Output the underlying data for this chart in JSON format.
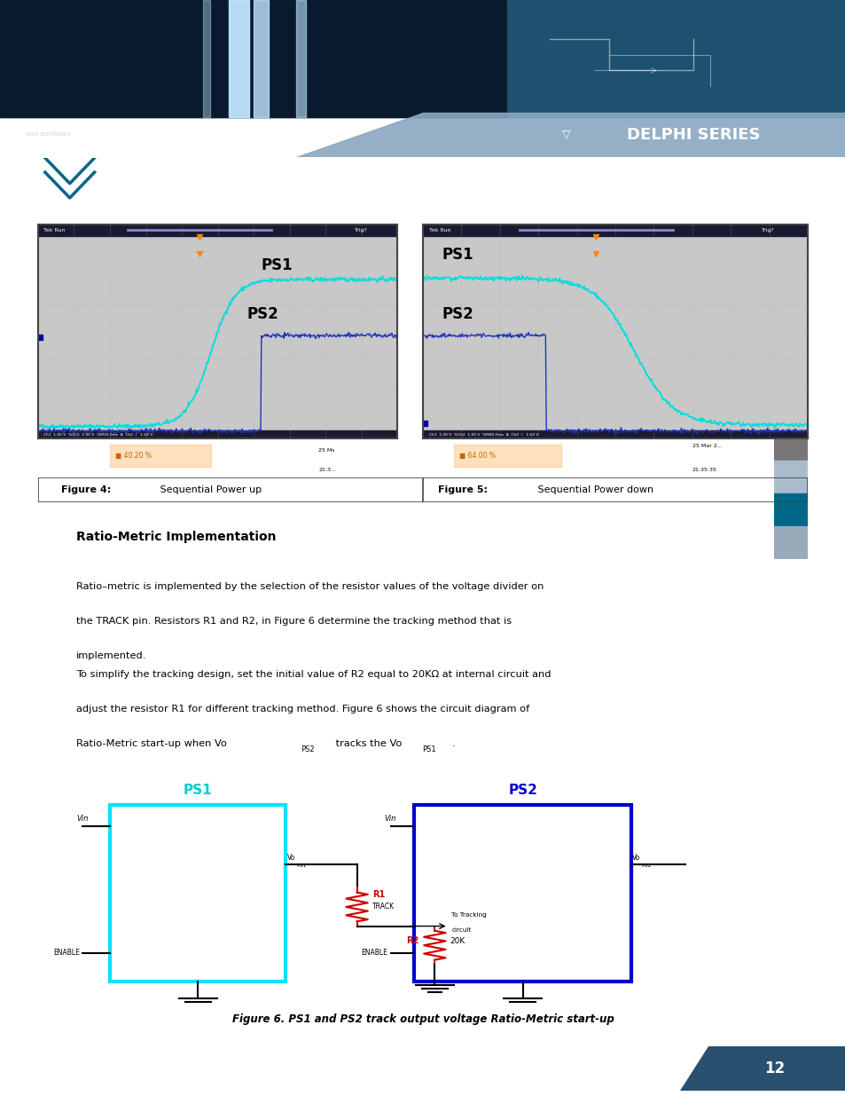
{
  "page_bg": "#ffffff",
  "delphi_text": "DELPHI SERIES",
  "title_section": "Ratio-Metric Implementation",
  "body_text_1a": "Ratio–metric is implemented by the selection of the resistor values of the voltage divider on",
  "body_text_1b": "the TRACK pin. Resistors R1 and R2, in Figure 6 determine the tracking method that is",
  "body_text_1c": "implemented.",
  "body_text_2a": "To simplify the tracking design, set the initial value of R2 equal to 20KΩ at internal circuit and",
  "body_text_2b": "adjust the resistor R1 for different tracking method. Figure 6 shows the circuit diagram of",
  "body_text_2c": "Ratio-Metric start-up when Vo",
  "body_text_2d": "PS2",
  "body_text_2e": " tracks the Vo",
  "body_text_2f": "PS1",
  "body_text_2g": ".",
  "fig4_caption_bold": "Figure 4:",
  "fig4_caption_rest": " Sequential Power up",
  "fig5_caption_bold": "Figure 5:",
  "fig5_caption_rest": " Sequential Power down",
  "fig6_caption": "Figure 6. PS1 and PS2 track output voltage Ratio-Metric start-up",
  "ps1_color": "#00e5ff",
  "ps2_color": "#0000cc",
  "ps1_label_color": "#00cccc",
  "ps2_label_color": "#0000cc",
  "r1_color": "#cc0000",
  "r2_color": "#cc0000",
  "page_num": "12",
  "scope_bg": "#c8c8c8",
  "scope_ps1_color": "#00dddd",
  "scope_ps2_color": "#2233bb",
  "orange_color": "#ff8800",
  "header_dark": "#0d1f35",
  "header_mid": "#1a3a5c",
  "header_light": "#8aa8c0",
  "chevron_color": "#006688"
}
